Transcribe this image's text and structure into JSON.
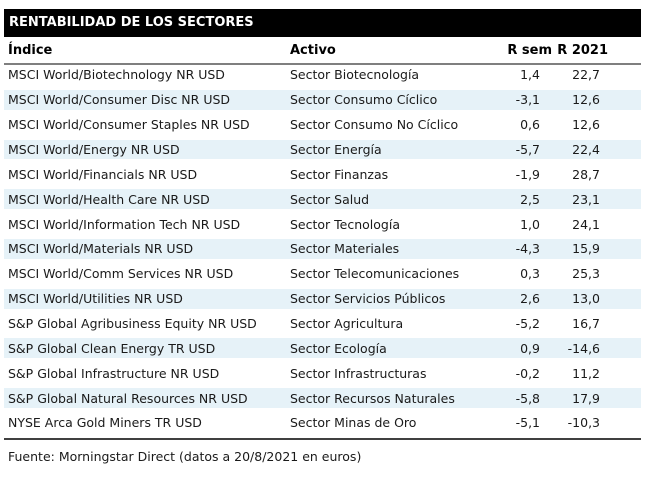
{
  "title": "RENTABILIDAD DE LOS SECTORES",
  "table": {
    "columns": {
      "indice": "Índice",
      "activo": "Activo",
      "r_sem": "R sem",
      "r_2021": "R 2021"
    },
    "rows": [
      {
        "indice": "MSCI World/Biotechnology NR USD",
        "activo": "Sector Biotecnología",
        "r_sem": "1,4",
        "r_2021": "22,7"
      },
      {
        "indice": "MSCI World/Consumer Disc NR USD",
        "activo": "Sector Consumo Cíclico",
        "r_sem": "-3,1",
        "r_2021": "12,6"
      },
      {
        "indice": "MSCI World/Consumer Staples NR USD",
        "activo": "Sector Consumo No Cíclico",
        "r_sem": "0,6",
        "r_2021": "12,6"
      },
      {
        "indice": "MSCI World/Energy NR USD",
        "activo": "Sector Energía",
        "r_sem": "-5,7",
        "r_2021": "22,4"
      },
      {
        "indice": "MSCI World/Financials NR USD",
        "activo": "Sector Finanzas",
        "r_sem": "-1,9",
        "r_2021": "28,7"
      },
      {
        "indice": "MSCI World/Health Care NR USD",
        "activo": "Sector Salud",
        "r_sem": "2,5",
        "r_2021": "23,1"
      },
      {
        "indice": "MSCI World/Information Tech NR USD",
        "activo": "Sector Tecnología",
        "r_sem": "1,0",
        "r_2021": "24,1"
      },
      {
        "indice": "MSCI World/Materials NR USD",
        "activo": "Sector Materiales",
        "r_sem": "-4,3",
        "r_2021": "15,9"
      },
      {
        "indice": "MSCI World/Comm Services NR USD",
        "activo": "Sector Telecomunicaciones",
        "r_sem": "0,3",
        "r_2021": "25,3"
      },
      {
        "indice": "MSCI World/Utilities NR USD",
        "activo": "Sector Servicios Públicos",
        "r_sem": "2,6",
        "r_2021": "13,0"
      },
      {
        "indice": "S&P Global Agribusiness Equity NR USD",
        "activo": "Sector Agricultura",
        "r_sem": "-5,2",
        "r_2021": "16,7"
      },
      {
        "indice": "S&P Global Clean Energy TR USD",
        "activo": "Sector Ecología",
        "r_sem": "0,9",
        "r_2021": "-14,6"
      },
      {
        "indice": "S&P Global Infrastructure NR USD",
        "activo": "Sector Infrastructuras",
        "r_sem": "-0,2",
        "r_2021": "11,2"
      },
      {
        "indice": "S&P Global Natural Resources NR USD",
        "activo": "Sector Recursos Naturales",
        "r_sem": "-5,8",
        "r_2021": "17,9"
      },
      {
        "indice": "NYSE Arca Gold Miners TR USD",
        "activo": "Sector Minas de Oro",
        "r_sem": "-5,1",
        "r_2021": "-10,3"
      }
    ]
  },
  "footer": "Fuente: Morningstar Direct (datos a 20/8/2021 en euros)",
  "colors": {
    "banner_bg": "#000000",
    "banner_text": "#ffffff",
    "stripe": "#e6f2f8",
    "header_rule": "#7f7f7f",
    "bottom_rule": "#404040",
    "body_text": "#1a1a1a"
  }
}
